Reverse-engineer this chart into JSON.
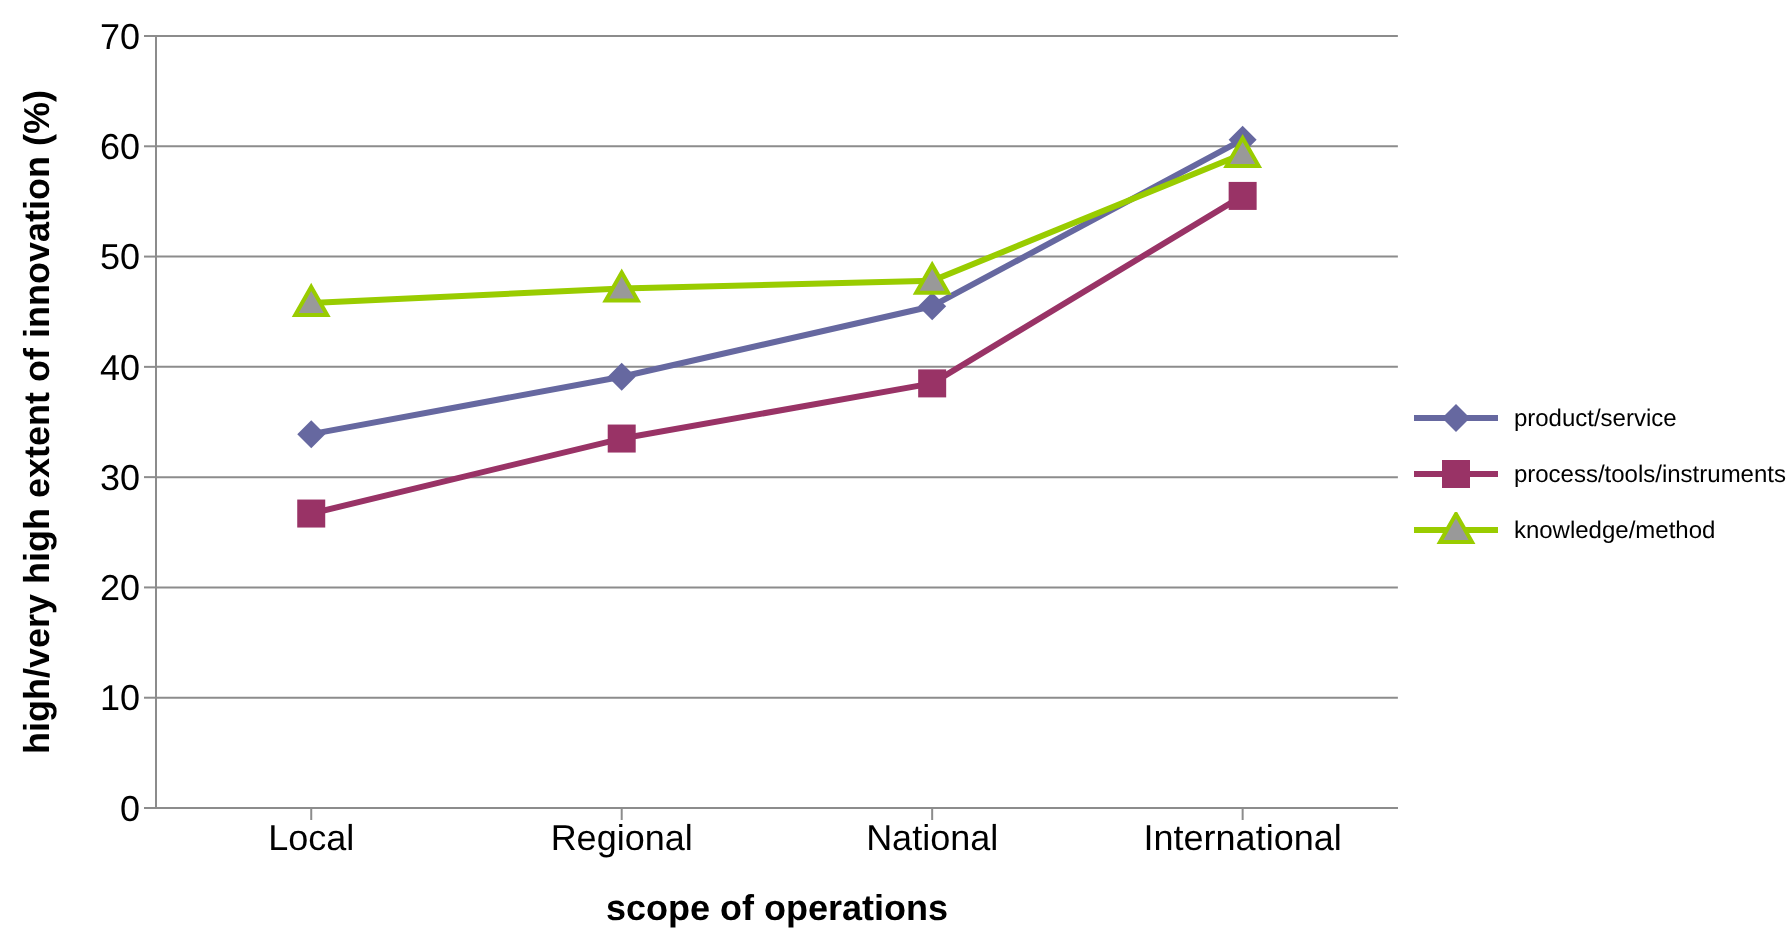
{
  "chart_data": {
    "type": "line",
    "xlabel": "scope of operations",
    "ylabel": "high/very high extent of innovation (%)",
    "categories": [
      "Local",
      "Regional",
      "National",
      "International"
    ],
    "series": [
      {
        "name": "product/service",
        "color": "#6668a0",
        "marker": "diamond",
        "values": [
          33.9,
          39.1,
          45.5,
          60.6
        ]
      },
      {
        "name": "process/tools/instruments",
        "color": "#993366",
        "marker": "square",
        "values": [
          26.7,
          33.5,
          38.5,
          55.5
        ]
      },
      {
        "name": "knowledge/method",
        "color": "#99cc00",
        "marker": "triangle",
        "values": [
          45.8,
          47.1,
          47.8,
          59.3
        ]
      }
    ],
    "ylim": [
      0,
      70
    ],
    "yticks": [
      0,
      10,
      20,
      30,
      40,
      50,
      60,
      70
    ],
    "grid": "y",
    "legend": "right",
    "line_style": "solid"
  }
}
